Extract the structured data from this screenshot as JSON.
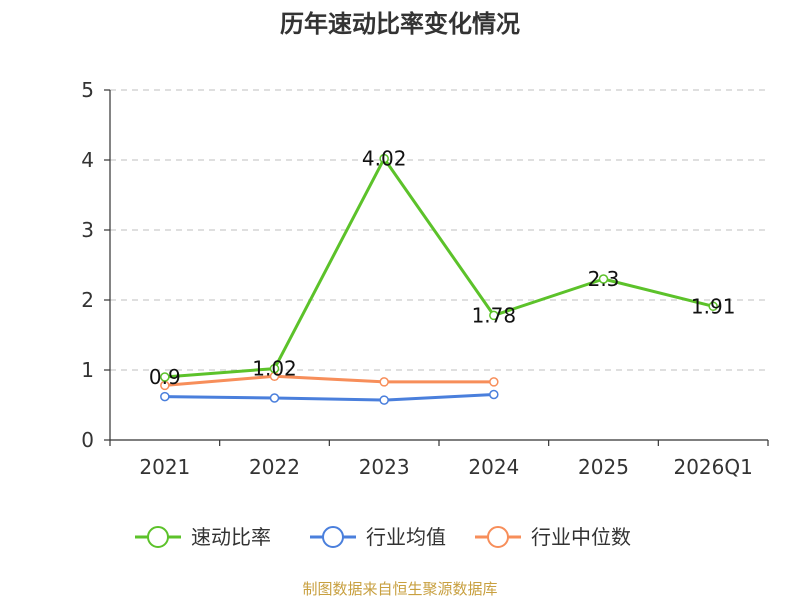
{
  "chart_data": {
    "type": "line",
    "title": "历年速动比率变化情况",
    "categories": [
      "2021",
      "2022",
      "2023",
      "2024",
      "2025",
      "2026Q1"
    ],
    "ylim": [
      0,
      5
    ],
    "yticks": [
      "0",
      "1",
      "2",
      "3",
      "4",
      "5"
    ],
    "grid": true,
    "legend_position": "bottom",
    "series": [
      {
        "name": "速动比率",
        "color": "#5cc22a",
        "values": [
          0.9,
          1.02,
          4.02,
          1.78,
          2.3,
          1.91
        ],
        "labels": [
          "0.9",
          "1.02",
          "4.02",
          "1.78",
          "2.3",
          "1.91"
        ]
      },
      {
        "name": "行业均值",
        "color": "#4a7fdc",
        "values": [
          0.62,
          0.6,
          0.57,
          0.65,
          null,
          null
        ]
      },
      {
        "name": "行业中位数",
        "color": "#f78e5a",
        "values": [
          0.78,
          0.91,
          0.83,
          0.83,
          null,
          null
        ]
      }
    ]
  },
  "source": "制图数据来自恒生聚源数据库"
}
